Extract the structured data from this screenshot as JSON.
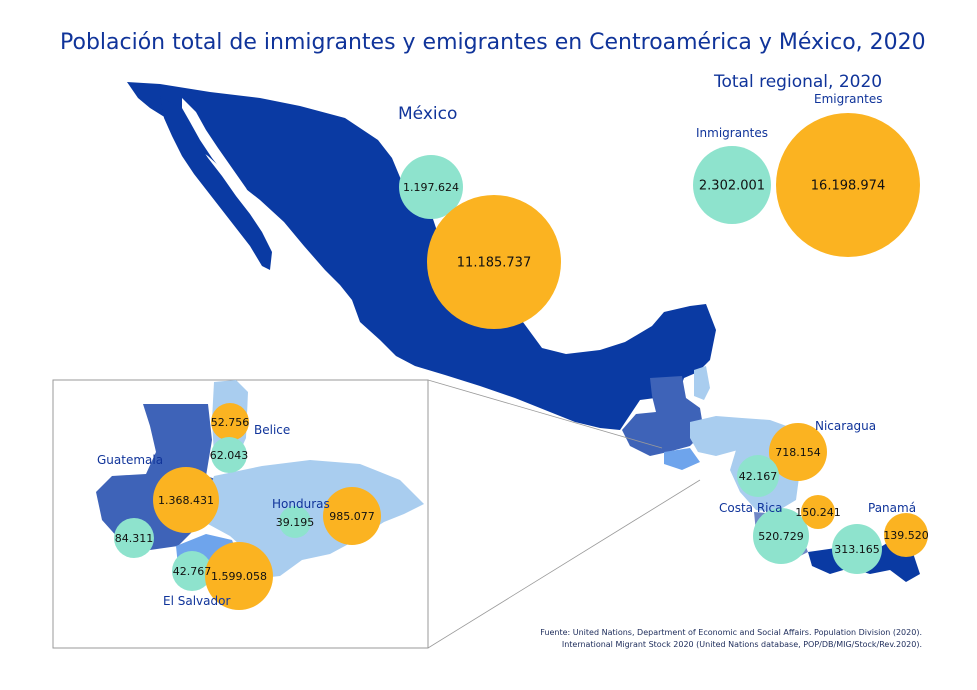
{
  "title": "Población total de inmigrantes y emigrantes en Centroamérica y México, 2020",
  "colors": {
    "inmigrantes": "#8ee3cd",
    "emigrantes": "#fbb321",
    "mexico": "#0a3aa3",
    "guatemala": "#3e63b8",
    "honduras": "#a9cdef",
    "belice": "#a9cdef",
    "el_salvador": "#6ea4ec",
    "nicaragua": "#a9cdef",
    "costa_rica": "#6f86c6",
    "panama": "#0a3aa3",
    "label": "#10349a"
  },
  "regional": {
    "heading": "Total regional, 2020",
    "inmigrantes_label": "Inmigrantes",
    "emigrantes_label": "Emigrantes",
    "inmigrantes": "2.302.001",
    "emigrantes": "16.198.974"
  },
  "countries": {
    "mexico": {
      "name": "México",
      "inmigrantes": "1.197.624",
      "emigrantes": "11.185.737"
    },
    "nicaragua": {
      "name": "Nicaragua",
      "inmigrantes": "42.167",
      "emigrantes": "718.154"
    },
    "costa_rica": {
      "name": "Costa Rica",
      "inmigrantes": "520.729",
      "emigrantes": "150.241"
    },
    "panama": {
      "name": "Panamá",
      "inmigrantes": "313.165",
      "emigrantes": "139.520"
    },
    "belice": {
      "name": "Belice",
      "inmigrantes": "62.043",
      "emigrantes": "52.756"
    },
    "guatemala": {
      "name": "Guatemala",
      "inmigrantes": "84.311",
      "emigrantes": "1.368.431"
    },
    "honduras": {
      "name": "Honduras",
      "inmigrantes": "39.195",
      "emigrantes": "985.077"
    },
    "el_salvador": {
      "name": "El Salvador",
      "inmigrantes": "42.767",
      "emigrantes": "1.599.058"
    }
  },
  "source": {
    "line1": "Fuente: United Nations, Department of Economic and Social Affairs. Population Division (2020).",
    "line2": "International Migrant Stock 2020 (United Nations database, POP/DB/MIG/Stock/Rev.2020)."
  }
}
